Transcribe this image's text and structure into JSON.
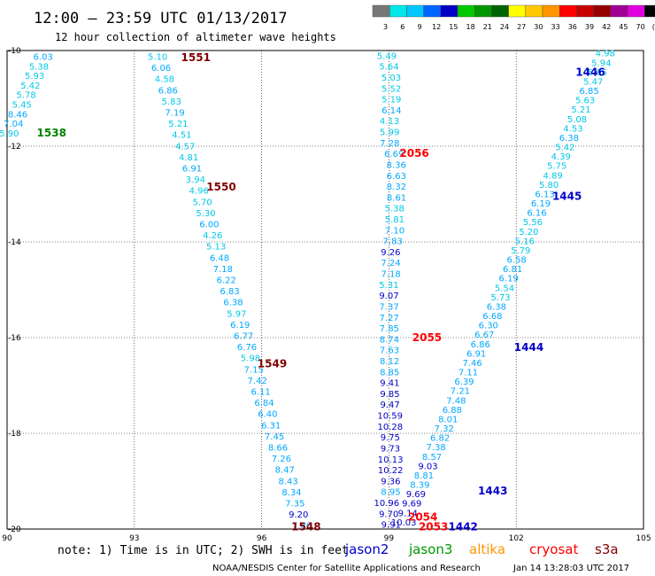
{
  "chart_data": {
    "type": "scatter",
    "title": "12:00 – 23:59 UTC 01/13/2017",
    "subtitle": "12 hour collection of altimeter wave heights",
    "xlim": [
      90,
      105
    ],
    "ylim": [
      -20,
      -10
    ],
    "x_ticks": [
      "90",
      "93",
      "96",
      "99",
      "102",
      "105"
    ],
    "y_ticks": [
      "-10",
      "-12",
      "-14",
      "-16",
      "-18",
      "-20"
    ],
    "colorbar": {
      "labels": [
        "3",
        "6",
        "9",
        "12",
        "15",
        "18",
        "21",
        "24",
        "27",
        "30",
        "33",
        "36",
        "39",
        "42",
        "45",
        "70",
        "(ft)"
      ],
      "colors": [
        "#777777",
        "#00e8e8",
        "#00c8ff",
        "#0064ff",
        "#0000c8",
        "#00c800",
        "#009600",
        "#006400",
        "#ffff00",
        "#ffc800",
        "#ff9600",
        "#ff0000",
        "#c80000",
        "#960000",
        "#a00096",
        "#e000e0",
        "#000000"
      ]
    },
    "series": [
      {
        "name": "1538",
        "label_color": "#008000",
        "values": [
          "6.03",
          "5.38",
          "5.93",
          "5.42",
          "5.78",
          "5.45",
          "8.46",
          "7.04",
          "5.90"
        ],
        "x": [
          90.85,
          90.75,
          90.65,
          90.55,
          90.45,
          90.35,
          90.25,
          90.15,
          90.05
        ],
        "y": [
          -10.12,
          -10.32,
          -10.52,
          -10.72,
          -10.92,
          -11.12,
          -11.32,
          -11.52,
          -11.72
        ]
      },
      {
        "name": "1551",
        "label_color": "#800000",
        "values": [
          "5.10",
          "6.06",
          "4.58",
          "6.86",
          "5.83",
          "7.19",
          "5.21",
          "4.51",
          "4.57",
          "4.81",
          "6.91",
          "3.94",
          "4.96",
          "5.70",
          "5.30",
          "6.00",
          "4.26",
          "5.13",
          "6.48",
          "7.18",
          "6.22",
          "6.83",
          "6.38",
          "5.97",
          "6.19",
          "6.77",
          "6.76",
          "5.98",
          "7.15",
          "7.42",
          "6.11",
          "6.84",
          "6.40",
          "6.31",
          "7.45",
          "8.66",
          "7.26",
          "8.47",
          "8.43",
          "8.34",
          "7.35",
          "9.20",
          "7.80"
        ]
      },
      {
        "name": "2056",
        "label_color": "#ff0000",
        "values": [
          "5.49",
          "5.64",
          "5.03",
          "5.52",
          "5.19",
          "6.14",
          "4.13",
          "5.99",
          "7.28",
          "6.69",
          "8.36",
          "6.63",
          "8.32",
          "8.61",
          "5.38",
          "5.81",
          "7.10",
          "7.83",
          "9.26",
          "7.24",
          "7.18",
          "5.31",
          "9.07",
          "7.37",
          "7.27",
          "7.85",
          "8.74",
          "7.63",
          "8.12",
          "8.85",
          "9.41",
          "9.85",
          "9.47",
          "10.59",
          "10.28",
          "9.75",
          "9.73",
          "10.13",
          "10.22",
          "9.36",
          "8.95",
          "10.96",
          "9.70",
          "9.91"
        ]
      },
      {
        "name": "1446",
        "label_color": "#0000c8",
        "values": [
          "4.98",
          "5.94",
          "5.65",
          "5.47",
          "6.85",
          "5.63",
          "5.21",
          "5.08",
          "4.53",
          "6.38",
          "5.42",
          "4.39",
          "5.75",
          "4.89",
          "5.80",
          "6.13",
          "6.19",
          "6.16",
          "5.56",
          "5.20",
          "5.16",
          "5.79",
          "6.58",
          "6.81",
          "6.19",
          "5.54",
          "5.73",
          "6.38",
          "6.68",
          "6.30",
          "6.67",
          "6.86",
          "6.91",
          "7.46",
          "7.11",
          "6.39",
          "7.21",
          "7.48",
          "6.88",
          "8.01",
          "7.32",
          "6.82",
          "7.38",
          "8.57",
          "9.03",
          "8.81",
          "8.39",
          "9.69",
          "9.69",
          "9.14",
          "10.03"
        ]
      }
    ],
    "pass_labels": [
      {
        "text": "1538",
        "color": "#008000"
      },
      {
        "text": "1551",
        "color": "#800000"
      },
      {
        "text": "1550",
        "color": "#800000"
      },
      {
        "text": "1549",
        "color": "#800000"
      },
      {
        "text": "1548",
        "color": "#800000"
      },
      {
        "text": "2056",
        "color": "#ff0000"
      },
      {
        "text": "2055",
        "color": "#ff0000"
      },
      {
        "text": "2054",
        "color": "#ff0000"
      },
      {
        "text": "2053",
        "color": "#ff0000"
      },
      {
        "text": "1446",
        "color": "#0000c8"
      },
      {
        "text": "1445",
        "color": "#0000c8"
      },
      {
        "text": "1444",
        "color": "#0000c8"
      },
      {
        "text": "1443",
        "color": "#0000c8"
      },
      {
        "text": "1442",
        "color": "#0000c8"
      }
    ]
  },
  "note": "note: 1) Time is in UTC; 2) SWH is in feet",
  "satellites": [
    {
      "name": "jason2",
      "color": "#0000c8"
    },
    {
      "name": "jason3",
      "color": "#009600"
    },
    {
      "name": "altika",
      "color": "#ff9600"
    },
    {
      "name": "cryosat",
      "color": "#ff0000"
    },
    {
      "name": "s3a",
      "color": "#800000"
    }
  ],
  "footer_center": "NOAA/NESDIS Center for Satellite Applications and Research",
  "footer_right": "Jan 14 13:28:03 UTC 2017"
}
